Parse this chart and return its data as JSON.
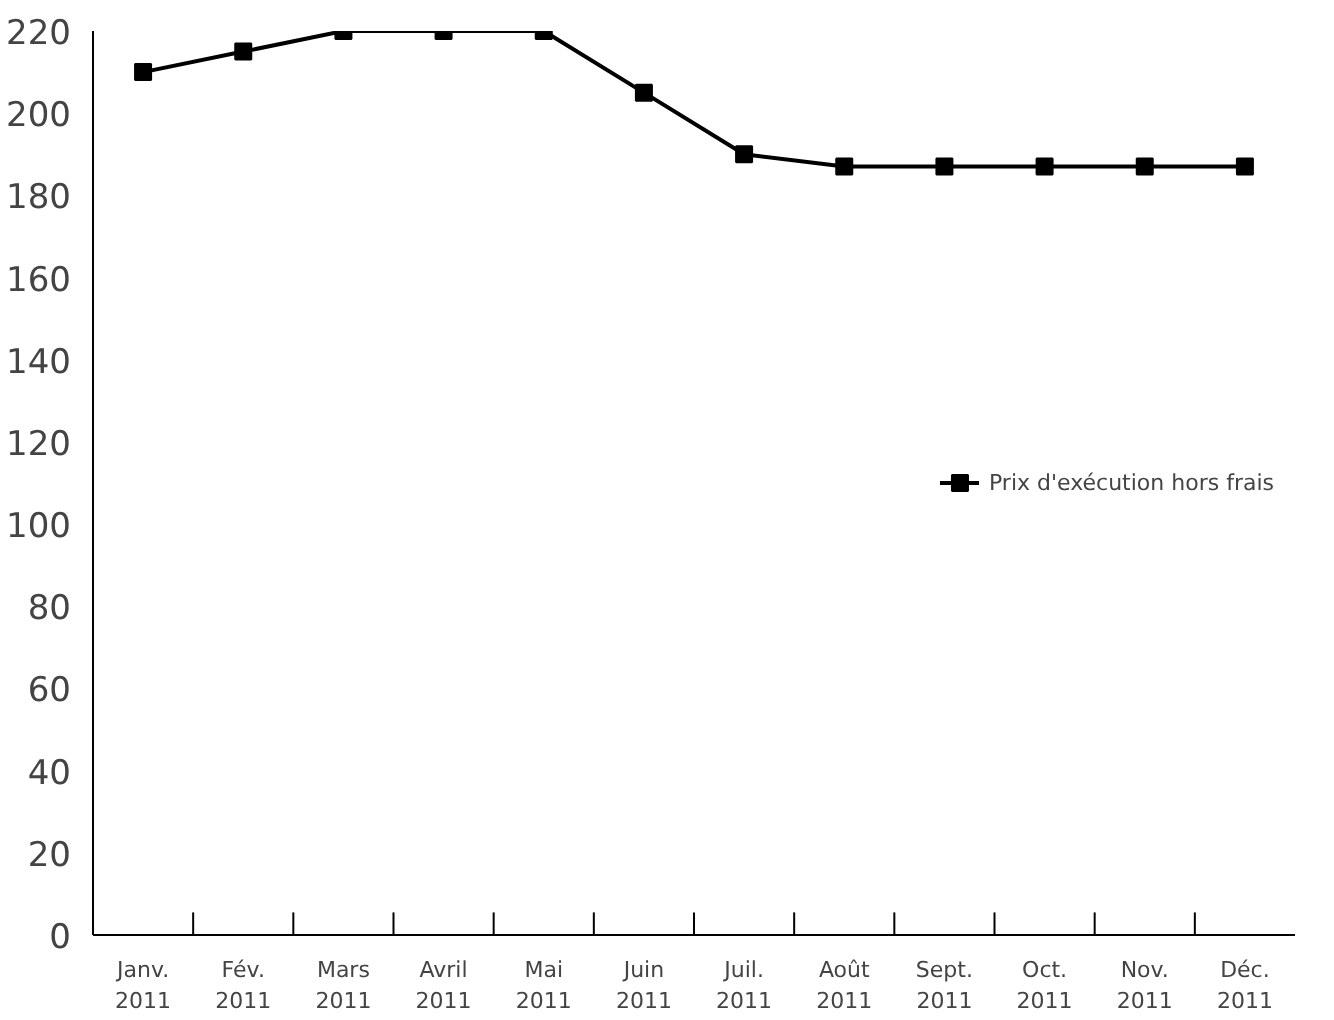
{
  "chart_data": {
    "type": "line",
    "categories": [
      "Janv.\n2011",
      "Fév.\n2011",
      "Mars\n2011",
      "Avril\n2011",
      "Mai\n2011",
      "Juin\n2011",
      "Juil.\n2011",
      "Août\n2011",
      "Sept.\n2011",
      "Oct.\n2011",
      "Nov.\n2011",
      "Déc.\n2011"
    ],
    "series": [
      {
        "name": "Prix d'exécution hors frais",
        "color": "#000000",
        "values": [
          210,
          215,
          220,
          220,
          220,
          205,
          190,
          187,
          187,
          187,
          187,
          187
        ]
      }
    ],
    "ylim": [
      0,
      220
    ],
    "yticks": [
      0,
      20,
      40,
      60,
      80,
      100,
      120,
      140,
      160,
      180,
      200,
      220
    ],
    "grid": false,
    "legend": "right",
    "marker": "square",
    "line_style": "solid"
  }
}
